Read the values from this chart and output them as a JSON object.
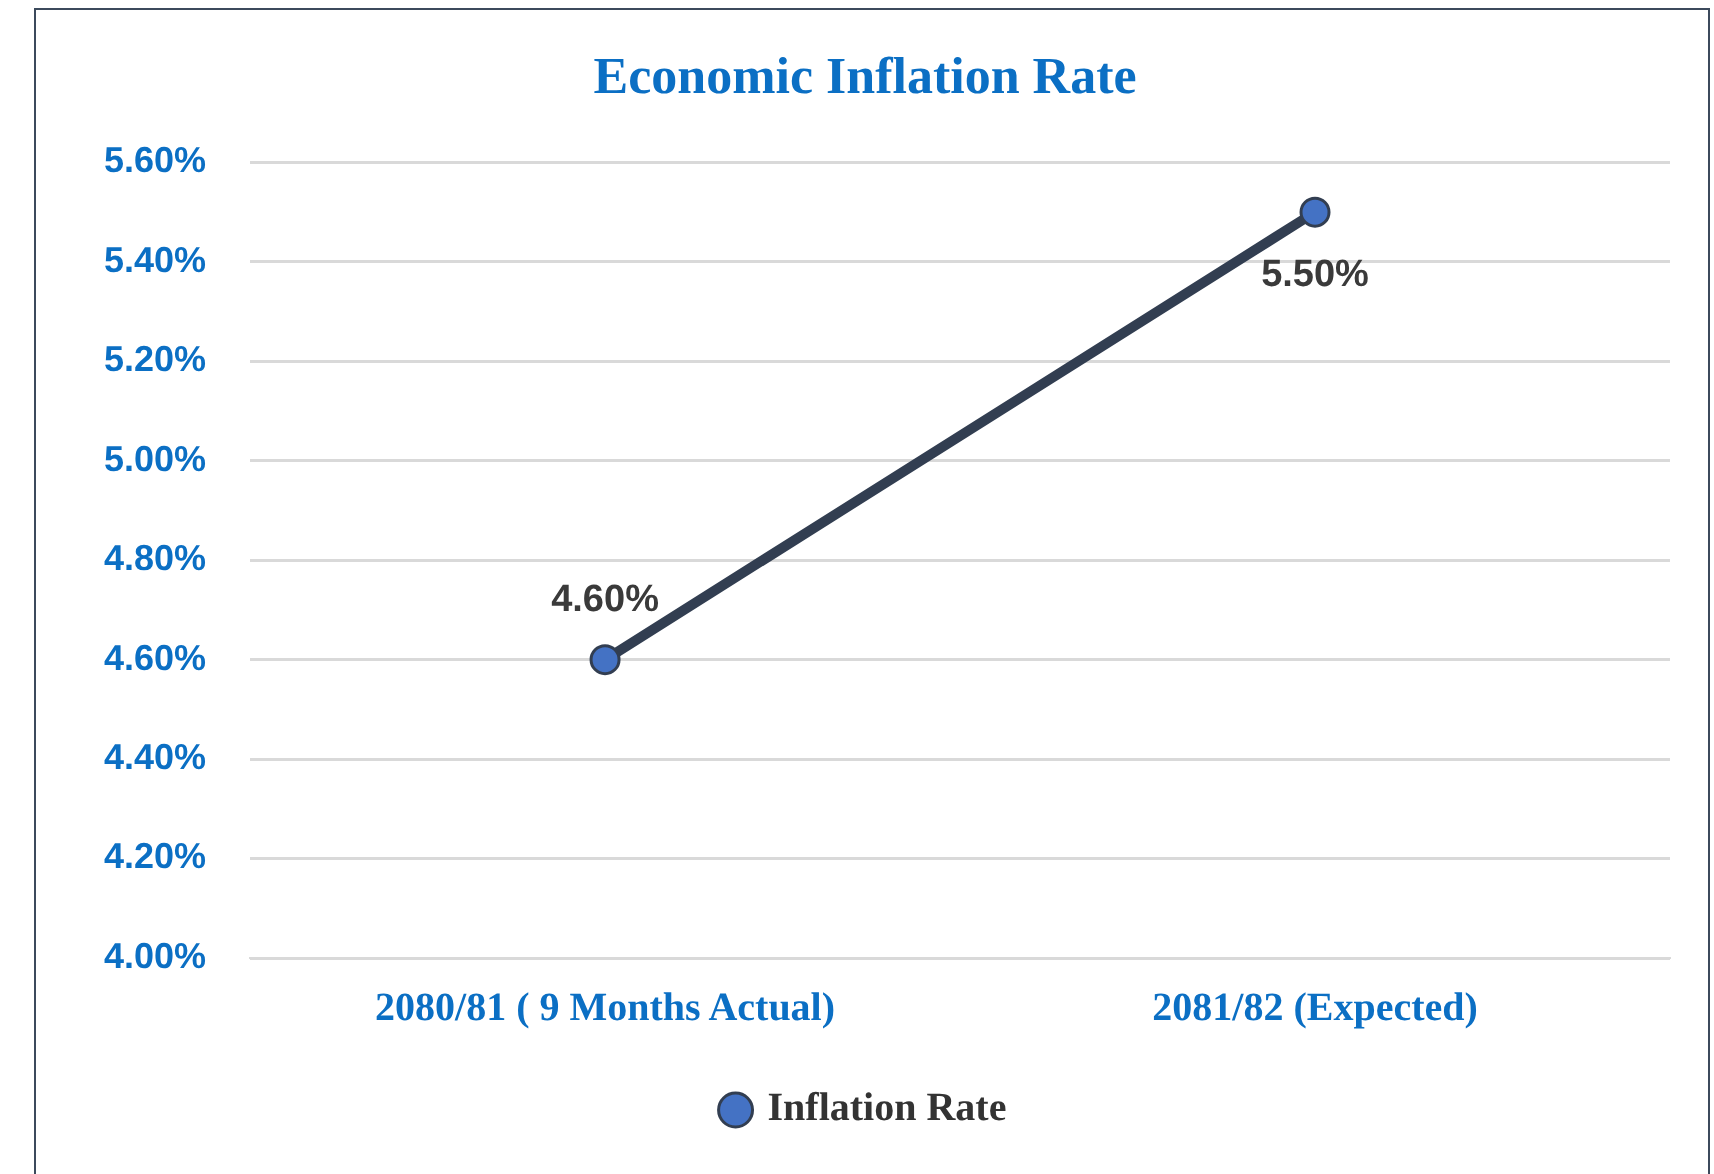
{
  "chart_data": {
    "type": "line",
    "title": "Economic Inflation Rate",
    "categories": [
      "2080/81 ( 9 Months Actual)",
      "2081/82 (Expected)"
    ],
    "series": [
      {
        "name": "Inflation Rate",
        "color": "#323e51",
        "values": [
          4.6,
          5.5
        ],
        "value_labels": [
          "4.60%",
          "5.50%"
        ]
      }
    ],
    "ylim": [
      4.0,
      5.6
    ],
    "yticks": [
      {
        "value": 4.0,
        "label": "4.00%"
      },
      {
        "value": 4.2,
        "label": "4.20%"
      },
      {
        "value": 4.4,
        "label": "4.40%"
      },
      {
        "value": 4.6,
        "label": "4.60%"
      },
      {
        "value": 4.8,
        "label": "4.80%"
      },
      {
        "value": 5.0,
        "label": "5.00%"
      },
      {
        "value": 5.2,
        "label": "5.20%"
      },
      {
        "value": 5.4,
        "label": "5.40%"
      },
      {
        "value": 5.6,
        "label": "5.60%"
      }
    ],
    "grid": "y",
    "legend": "bottom",
    "marker": "circle",
    "line_style": "solid"
  }
}
